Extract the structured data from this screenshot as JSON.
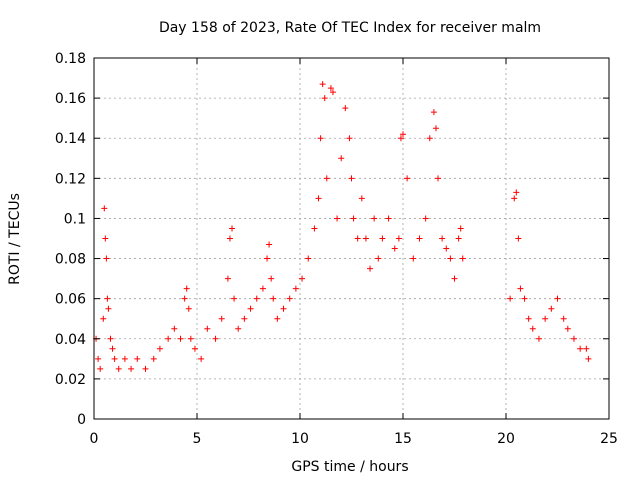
{
  "chart_data": {
    "type": "scatter",
    "title": "Day 158 of 2023, Rate Of TEC Index for receiver malm",
    "xlabel": "GPS time / hours",
    "ylabel": "ROTI / TECUs",
    "xlim": [
      0,
      25
    ],
    "ylim": [
      0,
      0.18
    ],
    "xticks": [
      0,
      5,
      10,
      15,
      20,
      25
    ],
    "xtick_labels": [
      "0",
      "5",
      "10",
      "15",
      "20",
      "25"
    ],
    "yticks": [
      0,
      0.02,
      0.04,
      0.06,
      0.08,
      0.1,
      0.12,
      0.14,
      0.16,
      0.18
    ],
    "ytick_labels": [
      "0",
      "0.02",
      "0.04",
      "0.06",
      "0.08",
      "0.1",
      "0.12",
      "0.14",
      "0.16",
      "0.18"
    ],
    "grid": true,
    "legend": "none",
    "marker": "+",
    "color": "#ff0000",
    "series": [
      {
        "x": [
          0.1,
          0.2,
          0.3,
          0.45,
          0.5,
          0.55,
          0.6,
          0.65,
          0.7,
          0.8,
          0.9,
          1.0,
          1.2,
          1.5,
          1.8,
          2.1,
          2.5,
          2.9,
          3.2,
          3.6,
          3.9,
          4.2,
          4.4,
          4.5,
          4.6,
          4.7,
          4.9,
          5.2,
          5.5,
          5.9,
          6.2,
          6.5,
          6.6,
          6.7,
          6.8,
          7.0,
          7.3,
          7.6,
          7.9,
          8.2,
          8.4,
          8.5,
          8.6,
          8.7,
          8.9,
          9.2,
          9.5,
          9.8,
          10.1,
          10.4,
          10.7,
          10.9,
          11.0,
          11.1,
          11.2,
          11.3,
          11.5,
          11.6,
          11.8,
          12.0,
          12.2,
          12.4,
          12.5,
          12.6,
          12.8,
          13.0,
          13.2,
          13.4,
          13.6,
          13.8,
          14.0,
          14.3,
          14.6,
          14.8,
          14.9,
          15.0,
          15.2,
          15.5,
          15.8,
          16.1,
          16.3,
          16.5,
          16.6,
          16.7,
          16.9,
          17.1,
          17.3,
          17.5,
          17.7,
          17.8,
          17.9,
          20.2,
          20.4,
          20.5,
          20.6,
          20.7,
          20.9,
          21.1,
          21.3,
          21.6,
          21.9,
          22.2,
          22.5,
          22.8,
          23.0,
          23.3,
          23.6,
          23.9,
          24.0
        ],
        "y": [
          0.04,
          0.03,
          0.025,
          0.05,
          0.105,
          0.09,
          0.08,
          0.06,
          0.055,
          0.04,
          0.035,
          0.03,
          0.025,
          0.03,
          0.025,
          0.03,
          0.025,
          0.03,
          0.035,
          0.04,
          0.045,
          0.04,
          0.06,
          0.065,
          0.055,
          0.04,
          0.035,
          0.03,
          0.045,
          0.04,
          0.05,
          0.07,
          0.09,
          0.095,
          0.06,
          0.045,
          0.05,
          0.055,
          0.06,
          0.065,
          0.08,
          0.087,
          0.07,
          0.06,
          0.05,
          0.055,
          0.06,
          0.065,
          0.07,
          0.08,
          0.095,
          0.11,
          0.14,
          0.167,
          0.16,
          0.12,
          0.165,
          0.163,
          0.1,
          0.13,
          0.155,
          0.14,
          0.12,
          0.1,
          0.09,
          0.11,
          0.09,
          0.075,
          0.1,
          0.08,
          0.09,
          0.1,
          0.085,
          0.09,
          0.14,
          0.142,
          0.12,
          0.08,
          0.09,
          0.1,
          0.14,
          0.153,
          0.145,
          0.12,
          0.09,
          0.085,
          0.08,
          0.07,
          0.09,
          0.095,
          0.08,
          0.06,
          0.11,
          0.113,
          0.09,
          0.065,
          0.06,
          0.05,
          0.045,
          0.04,
          0.05,
          0.055,
          0.06,
          0.05,
          0.045,
          0.04,
          0.035,
          0.035,
          0.03
        ]
      }
    ]
  }
}
